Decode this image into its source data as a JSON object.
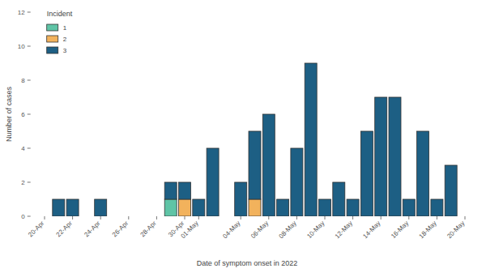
{
  "chart_data": {
    "type": "bar",
    "stacked": true,
    "legend": "top-left",
    "grid": false,
    "legend_title": "Incident",
    "x_label": "Date of symptom onset in 2022",
    "y_label": "Number of cases",
    "categories": [
      "20-Apr",
      null,
      "22-Apr",
      null,
      "24-Apr",
      null,
      "26-Apr",
      null,
      "28-Apr",
      null,
      "30-Apr",
      "01-May",
      null,
      null,
      "04-May",
      null,
      "06-May",
      null,
      "08-May",
      null,
      "10-May",
      null,
      "12-May",
      null,
      "14-May",
      null,
      "16-May",
      null,
      "18-May",
      null,
      "20-May"
    ],
    "series": [
      {
        "name": "1",
        "color": "#5fc4a6",
        "values": [
          0,
          0,
          0,
          0,
          0,
          0,
          0,
          0,
          0,
          1,
          0,
          0,
          0,
          0,
          0,
          0,
          0,
          0,
          0,
          0,
          0,
          0,
          0,
          0,
          0,
          0,
          0,
          0,
          0,
          0,
          0
        ]
      },
      {
        "name": "2",
        "color": "#f2b25c",
        "values": [
          0,
          0,
          0,
          0,
          0,
          0,
          0,
          0,
          0,
          0,
          1,
          0,
          0,
          0,
          0,
          1,
          0,
          0,
          0,
          0,
          0,
          0,
          0,
          0,
          0,
          0,
          0,
          0,
          0,
          0,
          0
        ]
      },
      {
        "name": "3",
        "color": "#1d5f84",
        "values": [
          0,
          1,
          1,
          0,
          1,
          0,
          0,
          0,
          0,
          1,
          1,
          1,
          4,
          0,
          2,
          4,
          6,
          1,
          4,
          9,
          1,
          2,
          1,
          5,
          7,
          7,
          1,
          5,
          1,
          3,
          0
        ]
      }
    ],
    "ylim": [
      0,
      12
    ],
    "yticks": [
      0,
      2,
      4,
      6,
      8,
      10,
      12
    ]
  }
}
